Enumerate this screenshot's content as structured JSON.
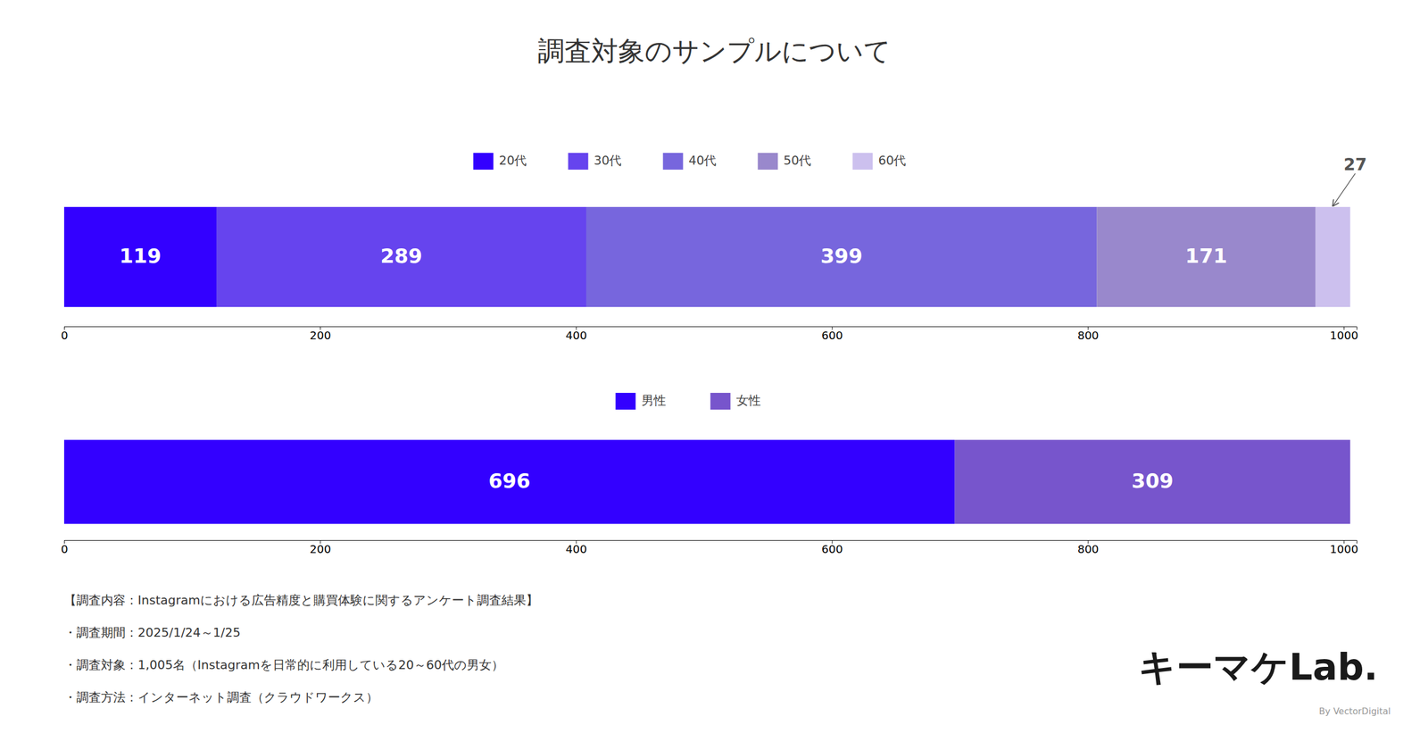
{
  "title": "調査対象のサンプルについて",
  "chart_data": [
    {
      "type": "bar",
      "orientation": "horizontal",
      "stacked": true,
      "categories": [
        null
      ],
      "series": [
        {
          "name": "20代",
          "color": "#3300ff",
          "values": [
            119
          ]
        },
        {
          "name": "30代",
          "color": "#6644ee",
          "values": [
            289
          ]
        },
        {
          "name": "40代",
          "color": "#7766dd",
          "values": [
            399
          ]
        },
        {
          "name": "50代",
          "color": "#9988cc",
          "values": [
            171
          ]
        },
        {
          "name": "60代",
          "color": "#ccc0ee",
          "values": [
            27
          ],
          "data_labels": false,
          "annotation": "27"
        }
      ],
      "xlim": [
        0,
        1010
      ],
      "xticks": [
        0,
        200,
        400,
        600,
        800,
        1000
      ],
      "grid": false,
      "legend": "top",
      "data_labels": true,
      "tick_labels": "x"
    },
    {
      "type": "bar",
      "orientation": "horizontal",
      "stacked": true,
      "categories": [
        null
      ],
      "series": [
        {
          "name": "男性",
          "color": "#3300ff",
          "values": [
            696
          ]
        },
        {
          "name": "女性",
          "color": "#7755cc",
          "values": [
            309
          ]
        }
      ],
      "xlim": [
        0,
        1010
      ],
      "xticks": [
        0,
        200,
        400,
        600,
        800,
        1000
      ],
      "grid": false,
      "legend": "top",
      "data_labels": true,
      "tick_labels": "x"
    }
  ],
  "footnotes": [
    "【調査内容：Instagramにおける広告精度と購買体験に関するアンケート調査結果】",
    "・調査期間：2025/1/24～1/25",
    "・調査対象：1,005名（Instagramを日常的に利用している20～60代の男女）",
    "・調査方法：インターネット調査（クラウドワークス）"
  ],
  "logo": {
    "text": "キーマケLab.",
    "subtext": "By VectorDigital"
  }
}
